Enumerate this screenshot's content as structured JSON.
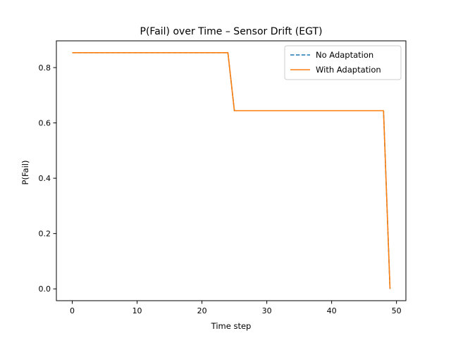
{
  "chart_data": {
    "type": "line",
    "title": "P(Fail) over Time – Sensor Drift (EGT)",
    "xlabel": "Time step",
    "ylabel": "P(Fail)",
    "xlim": [
      -2.45,
      51.45
    ],
    "ylim": [
      -0.0427,
      0.8967
    ],
    "xticks": [
      0,
      10,
      20,
      30,
      40,
      50
    ],
    "xtick_labels": [
      "0",
      "10",
      "20",
      "30",
      "40",
      "50"
    ],
    "yticks": [
      0.0,
      0.2,
      0.4,
      0.6,
      0.8
    ],
    "ytick_labels": [
      "0.0",
      "0.2",
      "0.4",
      "0.6",
      "0.8"
    ],
    "grid": false,
    "legend_position": "top-right",
    "series": [
      {
        "name": "No Adaptation",
        "color": "#1f77b4",
        "style": "dashed",
        "x": [
          0,
          24,
          25,
          48,
          49
        ],
        "y": [
          0.854,
          0.854,
          0.644,
          0.644,
          0.0
        ]
      },
      {
        "name": "With Adaptation",
        "color": "#ff7f0e",
        "style": "solid",
        "x": [
          0,
          24,
          25,
          48,
          49
        ],
        "y": [
          0.854,
          0.854,
          0.644,
          0.644,
          0.0
        ]
      }
    ]
  }
}
